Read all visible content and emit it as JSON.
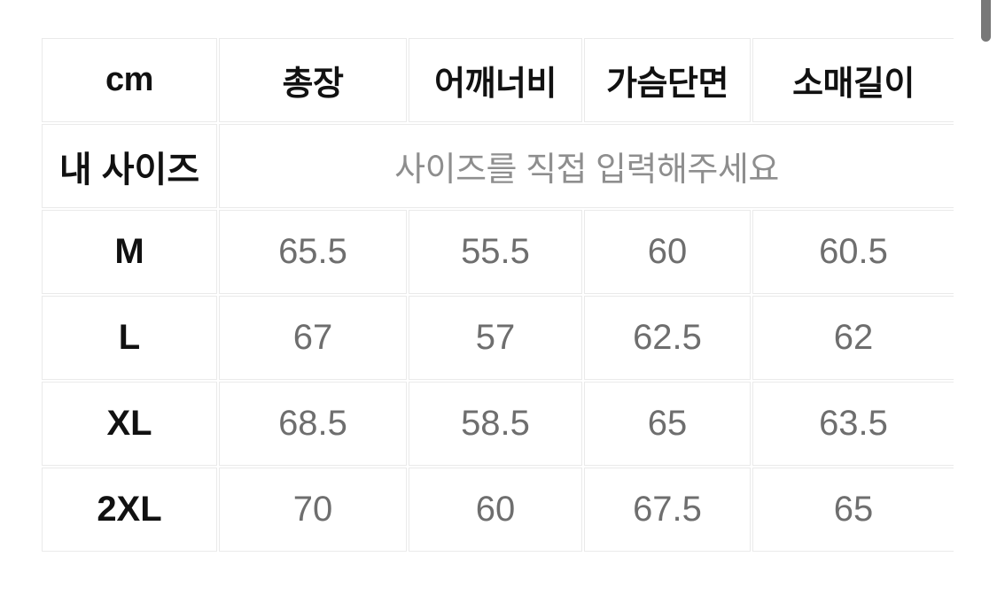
{
  "table": {
    "unit_label": "cm",
    "measure_columns": [
      "총장",
      "어깨너비",
      "가슴단면",
      "소매길이"
    ],
    "my_size": {
      "label": "내 사이즈",
      "placeholder": "사이즈를 직접 입력해주세요"
    },
    "rows": [
      {
        "size": "M",
        "values": [
          "65.5",
          "55.5",
          "60",
          "60.5"
        ]
      },
      {
        "size": "L",
        "values": [
          "67",
          "57",
          "62.5",
          "62"
        ]
      },
      {
        "size": "XL",
        "values": [
          "68.5",
          "58.5",
          "65",
          "63.5"
        ]
      },
      {
        "size": "2XL",
        "values": [
          "70",
          "60",
          "67.5",
          "65"
        ]
      }
    ]
  },
  "colors": {
    "border": "#eaeaea",
    "header_text": "#111111",
    "value_text": "#6e6e6e",
    "placeholder_text": "#8e8e8e",
    "scrollbar_thumb": "#787878",
    "background": "#ffffff"
  }
}
